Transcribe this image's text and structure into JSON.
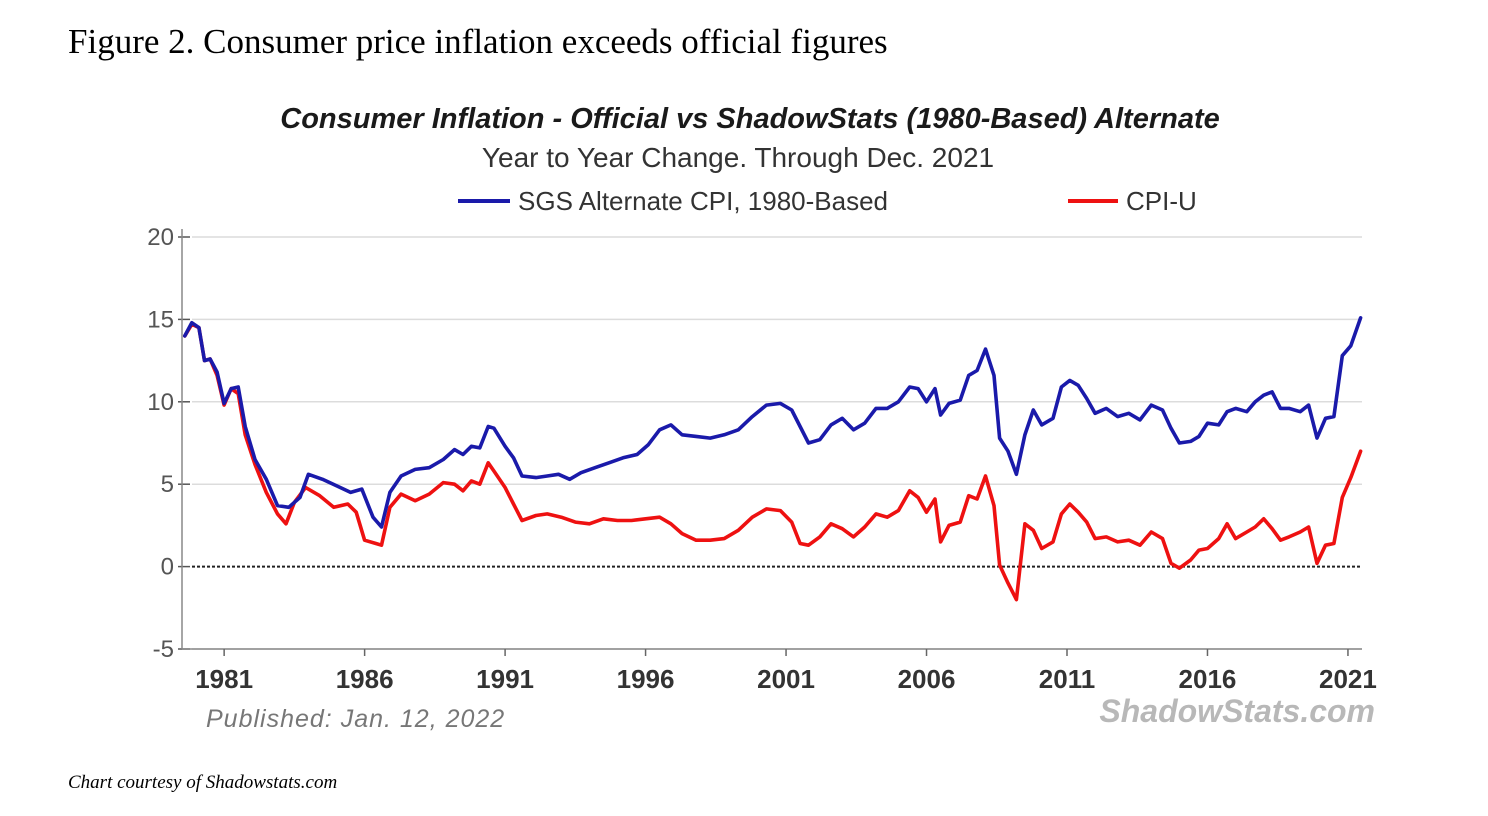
{
  "figure": {
    "title": "Figure 2. Consumer price inflation exceeds official figures",
    "credit": "Chart courtesy of Shadowstats.com"
  },
  "chart_data": {
    "type": "line",
    "title": "Consumer Inflation - Official vs ShadowStats (1980-Based) Alternate",
    "subtitle": "Year to Year Change. Through Dec. 2021",
    "xlabel": "",
    "ylabel": "",
    "ylim": [
      -5,
      20
    ],
    "xlim": [
      1980.0,
      2022.0
    ],
    "yticks": [
      20,
      15,
      10,
      5,
      0,
      -5
    ],
    "xticks": [
      "1981",
      "1986",
      "1991",
      "1996",
      "2001",
      "2006",
      "2011",
      "2016",
      "2021"
    ],
    "grid": true,
    "legend_position": "top",
    "published": "Published: Jan. 12, 2022",
    "watermark": "ShadowStats.com",
    "series": [
      {
        "name": "SGS Alternate CPI, 1980-Based",
        "color": "#1a1aaa",
        "points": [
          [
            1980.1,
            14.0
          ],
          [
            1980.35,
            14.8
          ],
          [
            1980.6,
            14.5
          ],
          [
            1980.8,
            12.5
          ],
          [
            1981.0,
            12.6
          ],
          [
            1981.25,
            11.8
          ],
          [
            1981.5,
            9.9
          ],
          [
            1981.75,
            10.8
          ],
          [
            1982.0,
            10.9
          ],
          [
            1982.25,
            8.5
          ],
          [
            1982.6,
            6.5
          ],
          [
            1983.0,
            5.3
          ],
          [
            1983.4,
            3.7
          ],
          [
            1983.8,
            3.6
          ],
          [
            1984.2,
            4.2
          ],
          [
            1984.5,
            5.6
          ],
          [
            1985.0,
            5.3
          ],
          [
            1985.5,
            4.9
          ],
          [
            1986.0,
            4.5
          ],
          [
            1986.4,
            4.7
          ],
          [
            1986.8,
            3.0
          ],
          [
            1987.1,
            2.4
          ],
          [
            1987.4,
            4.5
          ],
          [
            1987.8,
            5.5
          ],
          [
            1988.3,
            5.9
          ],
          [
            1988.8,
            6.0
          ],
          [
            1989.3,
            6.5
          ],
          [
            1989.7,
            7.1
          ],
          [
            1990.0,
            6.8
          ],
          [
            1990.3,
            7.3
          ],
          [
            1990.6,
            7.2
          ],
          [
            1990.9,
            8.5
          ],
          [
            1991.1,
            8.4
          ],
          [
            1991.5,
            7.3
          ],
          [
            1991.8,
            6.6
          ],
          [
            1992.1,
            5.5
          ],
          [
            1992.6,
            5.4
          ],
          [
            1993.0,
            5.5
          ],
          [
            1993.4,
            5.6
          ],
          [
            1993.8,
            5.3
          ],
          [
            1994.2,
            5.7
          ],
          [
            1994.7,
            6.0
          ],
          [
            1995.2,
            6.3
          ],
          [
            1995.7,
            6.6
          ],
          [
            1996.2,
            6.8
          ],
          [
            1996.6,
            7.4
          ],
          [
            1997.0,
            8.3
          ],
          [
            1997.4,
            8.6
          ],
          [
            1997.8,
            8.0
          ],
          [
            1998.3,
            7.9
          ],
          [
            1998.8,
            7.8
          ],
          [
            1999.3,
            8.0
          ],
          [
            1999.8,
            8.3
          ],
          [
            2000.3,
            9.1
          ],
          [
            2000.8,
            9.8
          ],
          [
            2001.3,
            9.9
          ],
          [
            2001.7,
            9.5
          ],
          [
            2002.0,
            8.5
          ],
          [
            2002.3,
            7.5
          ],
          [
            2002.7,
            7.7
          ],
          [
            2003.1,
            8.6
          ],
          [
            2003.5,
            9.0
          ],
          [
            2003.9,
            8.3
          ],
          [
            2004.3,
            8.7
          ],
          [
            2004.7,
            9.6
          ],
          [
            2005.1,
            9.6
          ],
          [
            2005.5,
            10.0
          ],
          [
            2005.9,
            10.9
          ],
          [
            2006.2,
            10.8
          ],
          [
            2006.5,
            10.0
          ],
          [
            2006.8,
            10.8
          ],
          [
            2007.0,
            9.2
          ],
          [
            2007.3,
            9.9
          ],
          [
            2007.7,
            10.1
          ],
          [
            2008.0,
            11.6
          ],
          [
            2008.3,
            11.9
          ],
          [
            2008.6,
            13.2
          ],
          [
            2008.9,
            11.6
          ],
          [
            2009.1,
            7.8
          ],
          [
            2009.4,
            7.0
          ],
          [
            2009.7,
            5.6
          ],
          [
            2010.0,
            8.0
          ],
          [
            2010.3,
            9.5
          ],
          [
            2010.6,
            8.6
          ],
          [
            2011.0,
            9.0
          ],
          [
            2011.3,
            10.9
          ],
          [
            2011.6,
            11.3
          ],
          [
            2011.9,
            11.0
          ],
          [
            2012.2,
            10.2
          ],
          [
            2012.5,
            9.3
          ],
          [
            2012.9,
            9.6
          ],
          [
            2013.3,
            9.1
          ],
          [
            2013.7,
            9.3
          ],
          [
            2014.1,
            8.9
          ],
          [
            2014.5,
            9.8
          ],
          [
            2014.9,
            9.5
          ],
          [
            2015.2,
            8.4
          ],
          [
            2015.5,
            7.5
          ],
          [
            2015.9,
            7.6
          ],
          [
            2016.2,
            7.9
          ],
          [
            2016.5,
            8.7
          ],
          [
            2016.9,
            8.6
          ],
          [
            2017.2,
            9.4
          ],
          [
            2017.5,
            9.6
          ],
          [
            2017.9,
            9.4
          ],
          [
            2018.2,
            10.0
          ],
          [
            2018.5,
            10.4
          ],
          [
            2018.8,
            10.6
          ],
          [
            2019.1,
            9.6
          ],
          [
            2019.4,
            9.6
          ],
          [
            2019.8,
            9.4
          ],
          [
            2020.1,
            9.8
          ],
          [
            2020.4,
            7.8
          ],
          [
            2020.7,
            9.0
          ],
          [
            2021.0,
            9.1
          ],
          [
            2021.3,
            12.8
          ],
          [
            2021.6,
            13.4
          ],
          [
            2021.95,
            15.1
          ]
        ]
      },
      {
        "name": "CPI-U",
        "color": "#ee1111",
        "points": [
          [
            1980.1,
            14.0
          ],
          [
            1980.35,
            14.7
          ],
          [
            1980.6,
            14.5
          ],
          [
            1980.8,
            12.5
          ],
          [
            1981.0,
            12.6
          ],
          [
            1981.25,
            11.6
          ],
          [
            1981.5,
            9.8
          ],
          [
            1981.75,
            10.8
          ],
          [
            1982.0,
            10.5
          ],
          [
            1982.25,
            8.0
          ],
          [
            1982.6,
            6.2
          ],
          [
            1983.0,
            4.5
          ],
          [
            1983.4,
            3.2
          ],
          [
            1983.7,
            2.6
          ],
          [
            1984.0,
            3.9
          ],
          [
            1984.4,
            4.8
          ],
          [
            1984.9,
            4.3
          ],
          [
            1985.4,
            3.6
          ],
          [
            1985.9,
            3.8
          ],
          [
            1986.2,
            3.3
          ],
          [
            1986.5,
            1.6
          ],
          [
            1986.9,
            1.4
          ],
          [
            1987.1,
            1.3
          ],
          [
            1987.4,
            3.6
          ],
          [
            1987.8,
            4.4
          ],
          [
            1988.3,
            4.0
          ],
          [
            1988.8,
            4.4
          ],
          [
            1989.3,
            5.1
          ],
          [
            1989.7,
            5.0
          ],
          [
            1990.0,
            4.6
          ],
          [
            1990.3,
            5.2
          ],
          [
            1990.6,
            5.0
          ],
          [
            1990.9,
            6.3
          ],
          [
            1991.1,
            5.8
          ],
          [
            1991.5,
            4.8
          ],
          [
            1991.8,
            3.8
          ],
          [
            1992.1,
            2.8
          ],
          [
            1992.6,
            3.1
          ],
          [
            1993.0,
            3.2
          ],
          [
            1993.5,
            3.0
          ],
          [
            1994.0,
            2.7
          ],
          [
            1994.5,
            2.6
          ],
          [
            1995.0,
            2.9
          ],
          [
            1995.5,
            2.8
          ],
          [
            1996.0,
            2.8
          ],
          [
            1996.5,
            2.9
          ],
          [
            1997.0,
            3.0
          ],
          [
            1997.4,
            2.6
          ],
          [
            1997.8,
            2.0
          ],
          [
            1998.3,
            1.6
          ],
          [
            1998.8,
            1.6
          ],
          [
            1999.3,
            1.7
          ],
          [
            1999.8,
            2.2
          ],
          [
            2000.3,
            3.0
          ],
          [
            2000.8,
            3.5
          ],
          [
            2001.3,
            3.4
          ],
          [
            2001.7,
            2.7
          ],
          [
            2002.0,
            1.4
          ],
          [
            2002.3,
            1.3
          ],
          [
            2002.7,
            1.8
          ],
          [
            2003.1,
            2.6
          ],
          [
            2003.5,
            2.3
          ],
          [
            2003.9,
            1.8
          ],
          [
            2004.3,
            2.4
          ],
          [
            2004.7,
            3.2
          ],
          [
            2005.1,
            3.0
          ],
          [
            2005.5,
            3.4
          ],
          [
            2005.9,
            4.6
          ],
          [
            2006.2,
            4.2
          ],
          [
            2006.5,
            3.3
          ],
          [
            2006.8,
            4.1
          ],
          [
            2007.0,
            1.5
          ],
          [
            2007.3,
            2.5
          ],
          [
            2007.7,
            2.7
          ],
          [
            2008.0,
            4.3
          ],
          [
            2008.3,
            4.1
          ],
          [
            2008.6,
            5.5
          ],
          [
            2008.9,
            3.7
          ],
          [
            2009.1,
            0.1
          ],
          [
            2009.4,
            -1.0
          ],
          [
            2009.7,
            -2.0
          ],
          [
            2010.0,
            2.6
          ],
          [
            2010.3,
            2.2
          ],
          [
            2010.6,
            1.1
          ],
          [
            2011.0,
            1.5
          ],
          [
            2011.3,
            3.2
          ],
          [
            2011.6,
            3.8
          ],
          [
            2011.9,
            3.3
          ],
          [
            2012.2,
            2.7
          ],
          [
            2012.5,
            1.7
          ],
          [
            2012.9,
            1.8
          ],
          [
            2013.3,
            1.5
          ],
          [
            2013.7,
            1.6
          ],
          [
            2014.1,
            1.3
          ],
          [
            2014.5,
            2.1
          ],
          [
            2014.9,
            1.7
          ],
          [
            2015.2,
            0.2
          ],
          [
            2015.5,
            -0.1
          ],
          [
            2015.9,
            0.4
          ],
          [
            2016.2,
            1.0
          ],
          [
            2016.5,
            1.1
          ],
          [
            2016.9,
            1.7
          ],
          [
            2017.2,
            2.6
          ],
          [
            2017.5,
            1.7
          ],
          [
            2017.9,
            2.1
          ],
          [
            2018.2,
            2.4
          ],
          [
            2018.5,
            2.9
          ],
          [
            2018.8,
            2.3
          ],
          [
            2019.1,
            1.6
          ],
          [
            2019.4,
            1.8
          ],
          [
            2019.8,
            2.1
          ],
          [
            2020.1,
            2.4
          ],
          [
            2020.4,
            0.2
          ],
          [
            2020.7,
            1.3
          ],
          [
            2021.0,
            1.4
          ],
          [
            2021.3,
            4.2
          ],
          [
            2021.6,
            5.4
          ],
          [
            2021.95,
            7.0
          ]
        ]
      }
    ]
  }
}
